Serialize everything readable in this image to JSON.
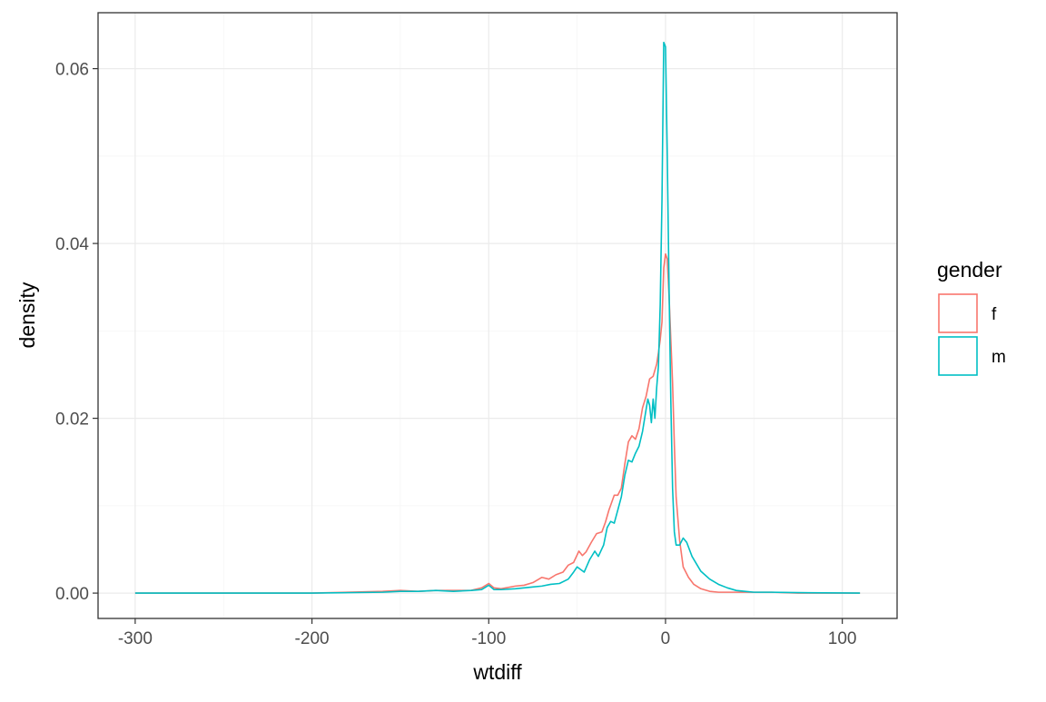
{
  "chart_data": {
    "type": "line",
    "xlabel": "wtdiff",
    "ylabel": "density",
    "xlim": [
      -321,
      131
    ],
    "ylim": [
      -0.0029,
      0.0664
    ],
    "x_ticks": [
      -300,
      -200,
      -100,
      0,
      100
    ],
    "x_tick_labels": [
      "-300",
      "-200",
      "-100",
      "0",
      "100"
    ],
    "y_ticks": [
      0,
      0.02,
      0.04,
      0.06
    ],
    "y_tick_labels": [
      "0.00",
      "0.02",
      "0.04",
      "0.06"
    ],
    "grid": true,
    "legend": {
      "title": "gender",
      "position": "right"
    },
    "series": [
      {
        "name": "f",
        "color": "#F8766D",
        "x": [
          -300,
          -250,
          -200,
          -160,
          -150,
          -140,
          -130,
          -120,
          -110,
          -104,
          -100,
          -97,
          -93,
          -85,
          -80,
          -75,
          -70,
          -66,
          -62,
          -58,
          -55,
          -52,
          -49,
          -47,
          -45,
          -42,
          -39,
          -36,
          -34,
          -32,
          -29,
          -27,
          -25,
          -23,
          -21,
          -19,
          -17,
          -15,
          -13,
          -11,
          -9,
          -7,
          -5,
          -4,
          -3,
          -2,
          -1,
          0,
          1,
          2,
          3,
          4,
          5,
          6,
          8,
          10,
          13,
          16,
          20,
          25,
          30,
          40,
          50,
          60,
          75,
          110
        ],
        "y": [
          0,
          0,
          0,
          0.0002,
          0.0003,
          0.0002,
          0.0003,
          0.0003,
          0.0003,
          0.0006,
          0.0011,
          0.0006,
          0.0005,
          0.0008,
          0.0009,
          0.0012,
          0.0018,
          0.0016,
          0.0021,
          0.0024,
          0.0032,
          0.0035,
          0.0048,
          0.0043,
          0.0047,
          0.0058,
          0.0068,
          0.007,
          0.0081,
          0.0095,
          0.0112,
          0.0112,
          0.012,
          0.0148,
          0.0173,
          0.018,
          0.0176,
          0.0188,
          0.0212,
          0.0225,
          0.0245,
          0.0248,
          0.0262,
          0.0275,
          0.029,
          0.031,
          0.0372,
          0.0388,
          0.0382,
          0.034,
          0.029,
          0.024,
          0.017,
          0.011,
          0.006,
          0.003,
          0.0018,
          0.001,
          0.0005,
          0.0002,
          0.0001,
          0.0001,
          0.0001,
          0.0001,
          0,
          0
        ]
      },
      {
        "name": "m",
        "color": "#00BFC4",
        "x": [
          -300,
          -250,
          -200,
          -160,
          -150,
          -140,
          -130,
          -120,
          -110,
          -104,
          -100,
          -97,
          -93,
          -85,
          -80,
          -75,
          -70,
          -65,
          -60,
          -55,
          -52,
          -50,
          -48,
          -46,
          -43,
          -40,
          -38,
          -35,
          -33,
          -31,
          -29,
          -27,
          -25,
          -23,
          -21,
          -19,
          -17,
          -15,
          -13,
          -11,
          -10,
          -9,
          -8,
          -7,
          -6,
          -5,
          -4,
          -3,
          -2,
          -1,
          0,
          1,
          2,
          3,
          4,
          5,
          6,
          8,
          10,
          12,
          15,
          20,
          25,
          30,
          35,
          40,
          45,
          50,
          60,
          75,
          110
        ],
        "y": [
          0,
          0,
          0,
          0.0001,
          0.0002,
          0.0002,
          0.0003,
          0.0002,
          0.0003,
          0.0004,
          0.0009,
          0.0004,
          0.0004,
          0.0005,
          0.0006,
          0.0007,
          0.0008,
          0.001,
          0.0011,
          0.0016,
          0.0024,
          0.003,
          0.0027,
          0.0024,
          0.0038,
          0.0048,
          0.0042,
          0.0055,
          0.0075,
          0.0082,
          0.008,
          0.0095,
          0.011,
          0.0135,
          0.0152,
          0.015,
          0.016,
          0.0168,
          0.0185,
          0.021,
          0.0222,
          0.0215,
          0.0195,
          0.0222,
          0.02,
          0.0235,
          0.026,
          0.033,
          0.045,
          0.063,
          0.0625,
          0.05,
          0.035,
          0.022,
          0.012,
          0.007,
          0.0055,
          0.0055,
          0.0063,
          0.0058,
          0.0042,
          0.0025,
          0.0016,
          0.001,
          0.0006,
          0.0003,
          0.0002,
          0.0001,
          0.0001,
          5e-05,
          0
        ]
      }
    ]
  }
}
